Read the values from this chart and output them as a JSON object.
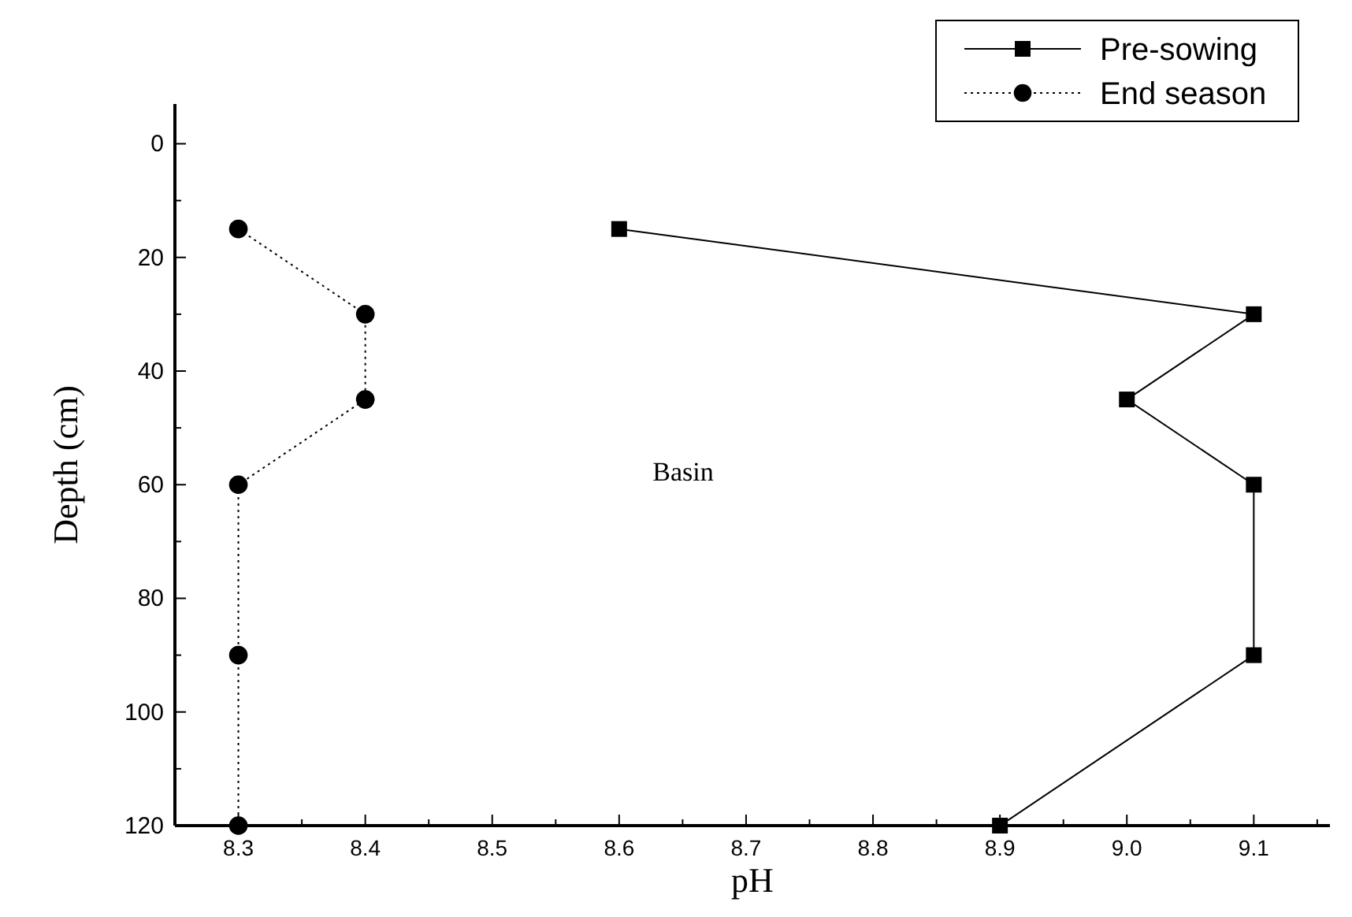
{
  "chart_data": {
    "type": "line",
    "xlabel": "pH",
    "ylabel": "Depth (cm)",
    "xlim": [
      8.25,
      9.16
    ],
    "ylim": [
      120,
      -7
    ],
    "xticks": [
      {
        "value": 8.25,
        "label": null
      },
      8.3,
      {
        "value": 8.35,
        "label": null
      },
      8.4,
      {
        "value": 8.45,
        "label": null
      },
      8.5,
      {
        "value": 8.55,
        "label": null
      },
      8.6,
      {
        "value": 8.65,
        "label": null
      },
      8.7,
      {
        "value": 8.75,
        "label": null
      },
      8.8,
      {
        "value": 8.85,
        "label": null
      },
      8.9,
      {
        "value": 8.95,
        "label": null
      },
      {
        "value": 9.0,
        "label": "9.0"
      },
      {
        "value": 9.05,
        "label": null
      },
      9.1,
      {
        "value": 9.15,
        "label": null
      }
    ],
    "yticks": [
      0,
      {
        "value": 10,
        "label": null
      },
      20,
      {
        "value": 30,
        "label": null
      },
      40,
      {
        "value": 50,
        "label": null
      },
      60,
      {
        "value": 70,
        "label": null
      },
      80,
      {
        "value": 90,
        "label": null
      },
      100,
      {
        "value": 110,
        "label": null
      },
      120
    ],
    "legend": "top right",
    "grid": false,
    "series": [
      {
        "name": "Pre-sowing",
        "color": "#000000",
        "marker": "square",
        "line_style": "solid",
        "x": [
          8.6,
          9.1,
          9.0,
          9.1,
          9.1,
          8.9
        ],
        "values": [
          15,
          30,
          45,
          60,
          90,
          120
        ]
      },
      {
        "name": "End season",
        "color": "#000000",
        "marker": "circle",
        "line_style": "dotted",
        "x": [
          8.3,
          8.4,
          8.4,
          8.3,
          8.3,
          8.3
        ],
        "values": [
          15,
          30,
          45,
          60,
          90,
          120
        ]
      }
    ],
    "annotations": [
      "Basin"
    ]
  }
}
